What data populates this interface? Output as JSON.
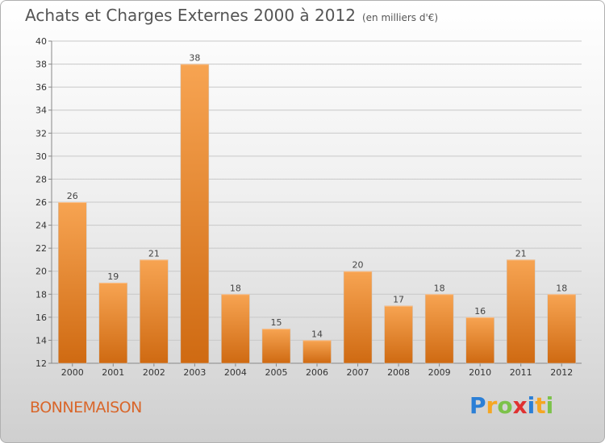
{
  "title": "Achats et Charges Externes 2000 à 2012",
  "subtitle": "(en milliers d'€)",
  "location": "BONNEMAISON",
  "brand": {
    "letters": [
      "P",
      "r",
      "o",
      "x",
      "i",
      "t",
      "i"
    ],
    "colors": [
      "#2b7fd6",
      "#f5a623",
      "#7cc24a",
      "#e03131",
      "#2b7fd6",
      "#f5a623",
      "#7cc24a"
    ]
  },
  "colors": {
    "bar": "#f0922f",
    "bar_dark": "#d06a12",
    "label": "#444444"
  },
  "chart_data": {
    "type": "bar",
    "title": "Achats et Charges Externes 2000 à 2012",
    "subtitle": "(en milliers d'€)",
    "xlabel": "",
    "ylabel": "",
    "categories": [
      "2000",
      "2001",
      "2002",
      "2003",
      "2004",
      "2005",
      "2006",
      "2007",
      "2008",
      "2009",
      "2010",
      "2011",
      "2012"
    ],
    "values": [
      26,
      19,
      21,
      38,
      18,
      15,
      14,
      20,
      17,
      18,
      16,
      21,
      18
    ],
    "data_labels": [
      "26",
      "19",
      "21",
      "38",
      "18",
      "15",
      "14",
      "20",
      "17",
      "18",
      "16",
      "21",
      "18"
    ],
    "ylim": [
      12,
      40
    ],
    "yticks": [
      "12",
      "14",
      "16",
      "18",
      "20",
      "22",
      "24",
      "26",
      "28",
      "30",
      "32",
      "34",
      "36",
      "38",
      "40"
    ],
    "grid": true,
    "legend": "none"
  }
}
